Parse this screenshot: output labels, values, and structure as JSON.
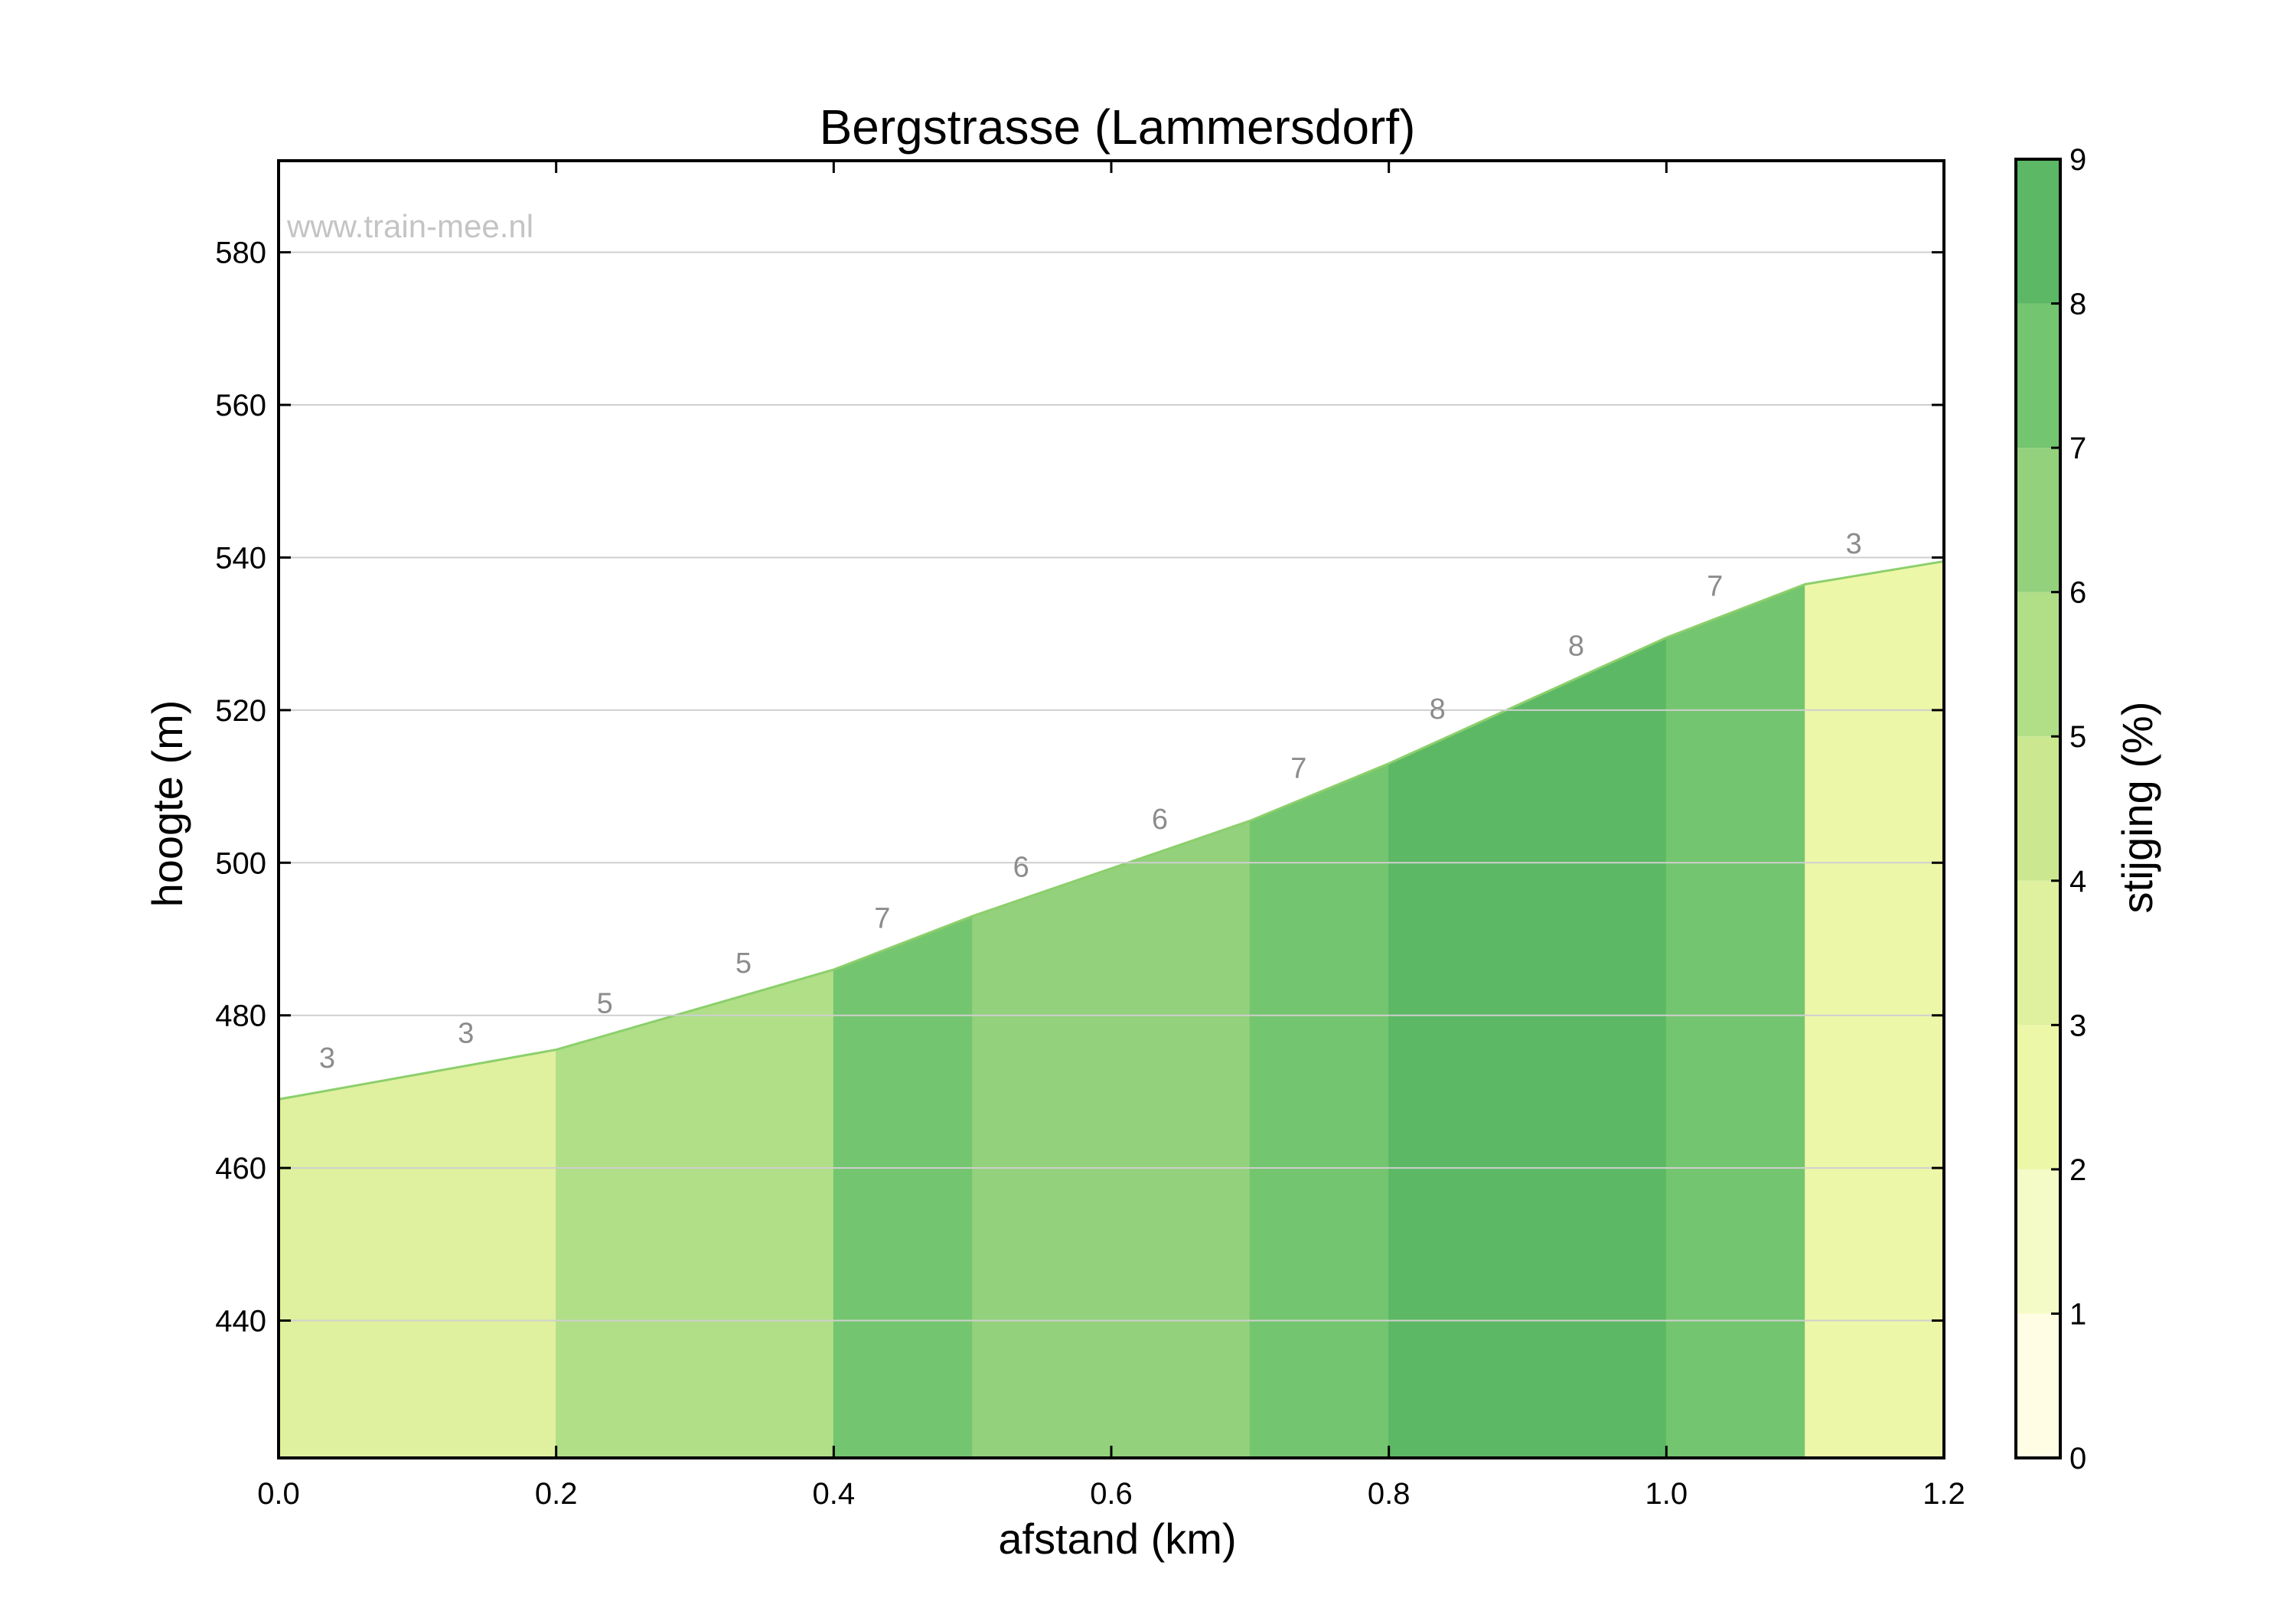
{
  "chart_data": {
    "type": "area",
    "title": "Bergstrasse (Lammersdorf)",
    "xlabel": "afstand (km)",
    "ylabel": "hoogte (m)",
    "xlim": [
      0.0,
      1.2
    ],
    "ylim": [
      422,
      592
    ],
    "xticks": [
      "0.0",
      "0.2",
      "0.4",
      "0.6",
      "0.8",
      "1.0",
      "1.2"
    ],
    "yticks": [
      "440",
      "460",
      "480",
      "500",
      "520",
      "540",
      "560",
      "580"
    ],
    "grid": true,
    "watermark": "www.train-mee.nl",
    "profile": [
      {
        "x": 0.0,
        "y": 469
      },
      {
        "x": 0.2,
        "y": 475.5
      },
      {
        "x": 0.4,
        "y": 486
      },
      {
        "x": 0.5,
        "y": 493
      },
      {
        "x": 0.7,
        "y": 505.5
      },
      {
        "x": 0.8,
        "y": 513
      },
      {
        "x": 1.0,
        "y": 529.5
      },
      {
        "x": 1.1,
        "y": 536.5
      },
      {
        "x": 1.2,
        "y": 539.5
      }
    ],
    "segments": [
      {
        "x0": 0.0,
        "x1": 0.2,
        "grade": 3,
        "color": "#dff09e"
      },
      {
        "x0": 0.2,
        "x1": 0.4,
        "grade": 5,
        "color": "#b0df88"
      },
      {
        "x0": 0.4,
        "x1": 0.5,
        "grade": 7,
        "color": "#74c56f"
      },
      {
        "x0": 0.5,
        "x1": 0.7,
        "grade": 6,
        "color": "#93d17c"
      },
      {
        "x0": 0.7,
        "x1": 0.8,
        "grade": 7,
        "color": "#74c56f"
      },
      {
        "x0": 0.8,
        "x1": 1.0,
        "grade": 8,
        "color": "#5cb865"
      },
      {
        "x0": 1.0,
        "x1": 1.1,
        "grade": 7,
        "color": "#74c56f"
      },
      {
        "x0": 1.1,
        "x1": 1.2,
        "grade": 3,
        "color": "#edf7a8"
      }
    ],
    "grade_labels": [
      {
        "x": 0.0,
        "text": "3"
      },
      {
        "x": 0.1,
        "text": "3"
      },
      {
        "x": 0.2,
        "text": "5"
      },
      {
        "x": 0.3,
        "text": "5"
      },
      {
        "x": 0.4,
        "text": "7"
      },
      {
        "x": 0.5,
        "text": "6"
      },
      {
        "x": 0.6,
        "text": "6"
      },
      {
        "x": 0.7,
        "text": "7"
      },
      {
        "x": 0.8,
        "text": "8"
      },
      {
        "x": 0.9,
        "text": "8"
      },
      {
        "x": 1.0,
        "text": "7"
      },
      {
        "x": 1.1,
        "text": "3"
      }
    ],
    "colorbar": {
      "label": "stijging (%)",
      "range": [
        0,
        9
      ],
      "ticks": [
        "0",
        "1",
        "2",
        "3",
        "4",
        "5",
        "6",
        "7",
        "8",
        "9"
      ],
      "colors": [
        "#fffde3",
        "#f5fbc6",
        "#edf7a8",
        "#dff09e",
        "#cbe891",
        "#b0df88",
        "#93d17c",
        "#74c56f",
        "#5cb865"
      ]
    },
    "profile_line_color": "#8ccf6c"
  }
}
